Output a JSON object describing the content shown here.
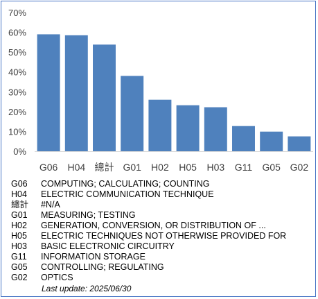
{
  "chart_data": {
    "type": "bar",
    "categories": [
      "G06",
      "H04",
      "總計",
      "G01",
      "H02",
      "H05",
      "H03",
      "G11",
      "G05",
      "G02"
    ],
    "values": [
      0.59,
      0.585,
      0.538,
      0.38,
      0.26,
      0.232,
      0.222,
      0.127,
      0.099,
      0.075
    ],
    "yticks": [
      "0%",
      "10%",
      "20%",
      "30%",
      "40%",
      "50%",
      "60%",
      "70%"
    ],
    "ylim": [
      0,
      0.7
    ],
    "grid": false,
    "bar_color": "#4f81bd"
  },
  "legend": [
    {
      "code": "G06",
      "desc": "COMPUTING; CALCULATING; COUNTING"
    },
    {
      "code": "H04",
      "desc": "ELECTRIC COMMUNICATION TECHNIQUE"
    },
    {
      "code": "總計",
      "desc": "#N/A"
    },
    {
      "code": "G01",
      "desc": "MEASURING; TESTING"
    },
    {
      "code": "H02",
      "desc": "GENERATION, CONVERSION, OR DISTRIBUTION OF ..."
    },
    {
      "code": "H05",
      "desc": "ELECTRIC TECHNIQUES NOT OTHERWISE PROVIDED FOR"
    },
    {
      "code": "H03",
      "desc": "BASIC ELECTRONIC CIRCUITRY"
    },
    {
      "code": "G11",
      "desc": "INFORMATION STORAGE"
    },
    {
      "code": "G05",
      "desc": "CONTROLLING; REGULATING"
    },
    {
      "code": "G02",
      "desc": "OPTICS"
    }
  ],
  "last_update": "Last update:  2025/06/30",
  "colors": {
    "border": "#4472c4",
    "bar": "#4f81bd",
    "axis": "#d9d9d9"
  }
}
